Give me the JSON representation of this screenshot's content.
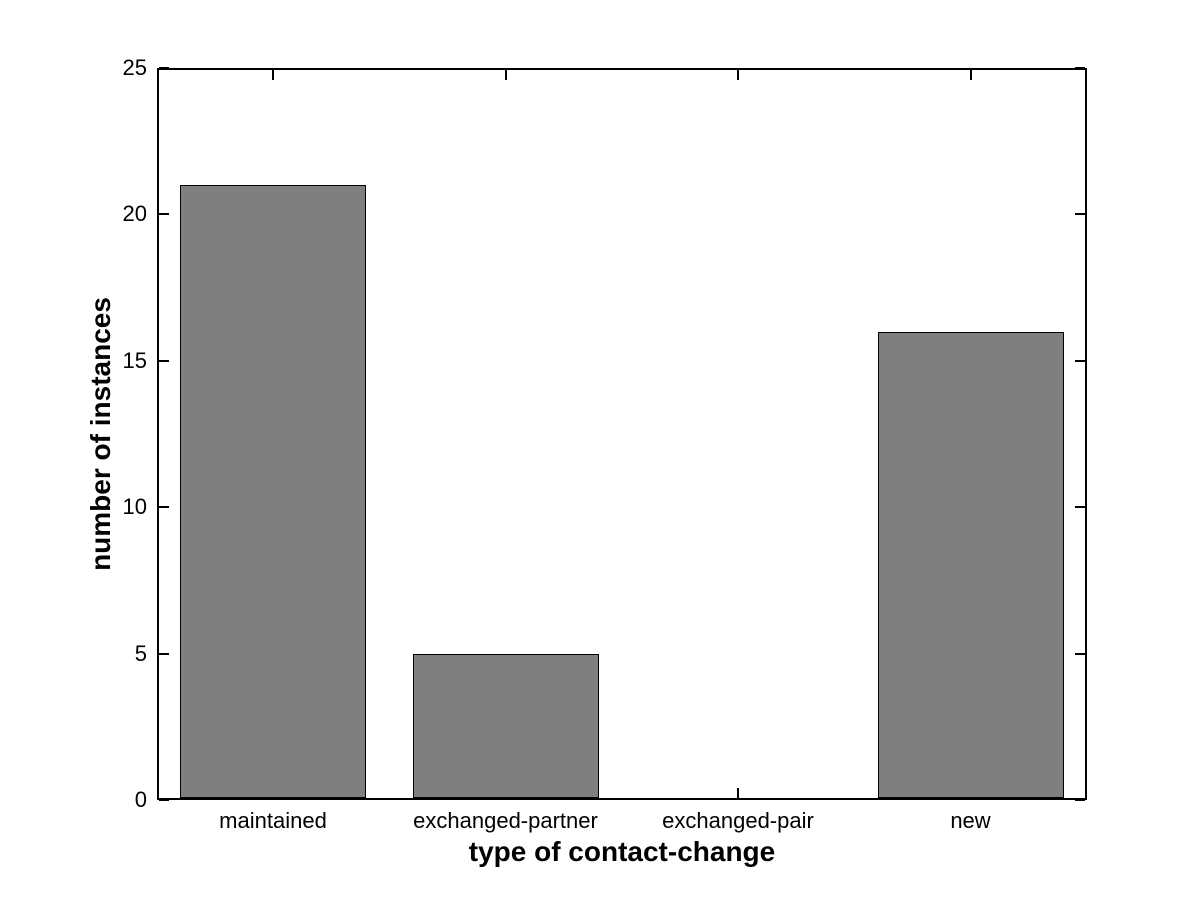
{
  "figure": {
    "background": "#ffffff"
  },
  "chart_data": {
    "type": "bar",
    "title": "",
    "categories": [
      "maintained",
      "exchanged-partner",
      "exchanged-pair",
      "new"
    ],
    "values": [
      21,
      5,
      0,
      16
    ],
    "xlabel": "type of contact-change",
    "ylabel": "number of instances",
    "ylim": [
      0,
      25
    ],
    "yticks": [
      0,
      5,
      10,
      15,
      20,
      25
    ],
    "bar_color": "#7f7f7f",
    "bar_edge_color": "#000000",
    "axis_color": "#000000",
    "grid": false,
    "legend_position": "none",
    "bar_width_fraction": 0.8,
    "tick_direction": "in",
    "box": true
  }
}
